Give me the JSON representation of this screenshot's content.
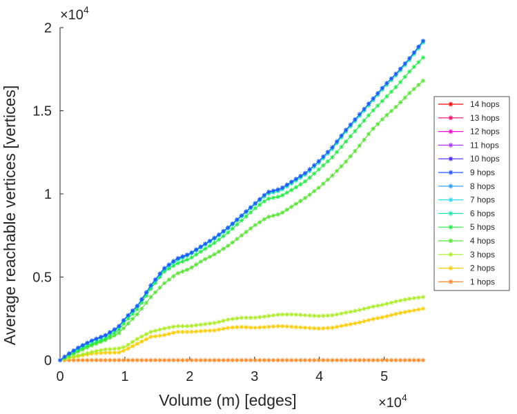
{
  "chart_data": {
    "type": "line",
    "title": "",
    "xlabel": "Volume (m) [edges]",
    "ylabel": "Average reachable vertices [vertices]",
    "x_multiplier_label": "×10",
    "x_multiplier_exp": "4",
    "y_multiplier_label": "×10",
    "y_multiplier_exp": "4",
    "xlim": [
      0,
      5.6
    ],
    "ylim": [
      0,
      2
    ],
    "xticks": [
      0,
      1,
      2,
      3,
      4,
      5
    ],
    "xtick_labels": [
      "0",
      "1",
      "2",
      "3",
      "4",
      "5"
    ],
    "yticks": [
      0,
      0.5,
      1,
      1.5,
      2
    ],
    "ytick_labels": [
      "0",
      "0.5",
      "1",
      "1.5",
      "2"
    ],
    "legend_position": "right",
    "marker": "*",
    "series": [
      {
        "name": "14 hops",
        "color": "#ff0000",
        "x": [
          0,
          5.6
        ],
        "values": [
          0,
          0
        ],
        "hidden": true
      },
      {
        "name": "13 hops",
        "color": "#ff0066",
        "x": [
          0,
          5.6
        ],
        "values": [
          0,
          0
        ],
        "hidden": true
      },
      {
        "name": "12 hops",
        "color": "#ff00d4",
        "x": [
          0,
          5.6
        ],
        "values": [
          0,
          0
        ],
        "hidden": true
      },
      {
        "name": "11 hops",
        "color": "#b233ff",
        "x": [
          0,
          5.6
        ],
        "values": [
          0,
          0
        ],
        "hidden": true
      },
      {
        "name": "10 hops",
        "color": "#4422ff",
        "x": [
          0,
          5.6
        ],
        "values": [
          0,
          0
        ],
        "hidden": true
      },
      {
        "name": "9 hops",
        "color": "#2255ff",
        "x": [
          0,
          0.1,
          0.3,
          0.5,
          0.7,
          0.9,
          1.0,
          1.2,
          1.4,
          1.6,
          1.8,
          2.0,
          2.2,
          2.4,
          2.6,
          2.8,
          3.0,
          3.2,
          3.4,
          3.6,
          3.8,
          4.0,
          4.2,
          4.4,
          4.6,
          4.8,
          5.0,
          5.2,
          5.4,
          5.6
        ],
        "values": [
          0,
          0.03,
          0.08,
          0.12,
          0.15,
          0.2,
          0.25,
          0.33,
          0.45,
          0.55,
          0.61,
          0.64,
          0.69,
          0.74,
          0.8,
          0.87,
          0.94,
          1.01,
          1.03,
          1.08,
          1.13,
          1.2,
          1.28,
          1.38,
          1.47,
          1.56,
          1.65,
          1.73,
          1.82,
          1.92
        ]
      },
      {
        "name": "8 hops",
        "color": "#2299ff",
        "x": [
          0,
          0.1,
          0.3,
          0.5,
          0.7,
          0.9,
          1.0,
          1.2,
          1.4,
          1.6,
          1.8,
          2.0,
          2.2,
          2.4,
          2.6,
          2.8,
          3.0,
          3.2,
          3.4,
          3.6,
          3.8,
          4.0,
          4.2,
          4.4,
          4.6,
          4.8,
          5.0,
          5.2,
          5.4,
          5.6
        ],
        "values": [
          0,
          0.03,
          0.08,
          0.12,
          0.15,
          0.2,
          0.25,
          0.33,
          0.45,
          0.55,
          0.61,
          0.64,
          0.69,
          0.74,
          0.8,
          0.87,
          0.94,
          1.01,
          1.03,
          1.08,
          1.13,
          1.2,
          1.28,
          1.38,
          1.47,
          1.56,
          1.65,
          1.73,
          1.82,
          1.92
        ]
      },
      {
        "name": "7 hops",
        "color": "#22ddff",
        "x": [
          0,
          0.1,
          0.3,
          0.5,
          0.7,
          0.9,
          1.0,
          1.2,
          1.4,
          1.6,
          1.8,
          2.0,
          2.2,
          2.4,
          2.6,
          2.8,
          3.0,
          3.2,
          3.4,
          3.6,
          3.8,
          4.0,
          4.2,
          4.4,
          4.6,
          4.8,
          5.0,
          5.2,
          5.4,
          5.6
        ],
        "values": [
          0,
          0.03,
          0.08,
          0.12,
          0.15,
          0.2,
          0.25,
          0.33,
          0.45,
          0.55,
          0.61,
          0.64,
          0.69,
          0.74,
          0.8,
          0.87,
          0.94,
          1.01,
          1.03,
          1.08,
          1.13,
          1.2,
          1.28,
          1.38,
          1.47,
          1.56,
          1.65,
          1.73,
          1.82,
          1.92
        ]
      },
      {
        "name": "6 hops",
        "color": "#11e8aa",
        "x": [
          0,
          0.1,
          0.3,
          0.5,
          0.7,
          0.9,
          1.0,
          1.2,
          1.4,
          1.6,
          1.8,
          2.0,
          2.2,
          2.4,
          2.6,
          2.8,
          3.0,
          3.2,
          3.4,
          3.6,
          3.8,
          4.0,
          4.2,
          4.4,
          4.6,
          4.8,
          5.0,
          5.2,
          5.4,
          5.6
        ],
        "values": [
          0,
          0.03,
          0.075,
          0.115,
          0.145,
          0.195,
          0.245,
          0.325,
          0.44,
          0.54,
          0.6,
          0.635,
          0.685,
          0.735,
          0.795,
          0.865,
          0.935,
          1.0,
          1.02,
          1.07,
          1.12,
          1.19,
          1.27,
          1.37,
          1.46,
          1.55,
          1.64,
          1.72,
          1.81,
          1.91
        ]
      },
      {
        "name": "5 hops",
        "color": "#22ee44",
        "x": [
          0,
          0.1,
          0.3,
          0.5,
          0.7,
          0.9,
          1.0,
          1.2,
          1.4,
          1.6,
          1.8,
          2.0,
          2.2,
          2.4,
          2.6,
          2.8,
          3.0,
          3.2,
          3.4,
          3.6,
          3.8,
          4.0,
          4.2,
          4.4,
          4.6,
          4.8,
          5.0,
          5.2,
          5.4,
          5.6
        ],
        "values": [
          0,
          0.02,
          0.065,
          0.1,
          0.13,
          0.18,
          0.23,
          0.31,
          0.43,
          0.53,
          0.58,
          0.61,
          0.66,
          0.71,
          0.77,
          0.84,
          0.91,
          0.97,
          0.985,
          1.03,
          1.08,
          1.15,
          1.22,
          1.31,
          1.4,
          1.49,
          1.57,
          1.65,
          1.74,
          1.82
        ]
      },
      {
        "name": "4 hops",
        "color": "#55e633",
        "x": [
          0,
          0.1,
          0.3,
          0.5,
          0.7,
          0.9,
          1.0,
          1.2,
          1.4,
          1.6,
          1.8,
          2.0,
          2.2,
          2.4,
          2.6,
          2.8,
          3.0,
          3.2,
          3.4,
          3.6,
          3.8,
          4.0,
          4.2,
          4.4,
          4.6,
          4.8,
          5.0,
          5.2,
          5.4,
          5.6
        ],
        "values": [
          0,
          0.02,
          0.055,
          0.09,
          0.12,
          0.16,
          0.2,
          0.28,
          0.38,
          0.46,
          0.52,
          0.55,
          0.6,
          0.64,
          0.69,
          0.75,
          0.81,
          0.86,
          0.88,
          0.93,
          0.98,
          1.04,
          1.11,
          1.19,
          1.28,
          1.38,
          1.46,
          1.53,
          1.61,
          1.68
        ]
      },
      {
        "name": "3 hops",
        "color": "#aaee22",
        "x": [
          0,
          0.1,
          0.3,
          0.5,
          0.7,
          0.9,
          1.0,
          1.2,
          1.4,
          1.6,
          1.8,
          2.0,
          2.2,
          2.4,
          2.6,
          2.8,
          3.0,
          3.2,
          3.4,
          3.6,
          3.8,
          4.0,
          4.2,
          4.4,
          4.6,
          4.8,
          5.0,
          5.2,
          5.4,
          5.6
        ],
        "values": [
          0,
          0.01,
          0.03,
          0.05,
          0.065,
          0.07,
          0.08,
          0.13,
          0.17,
          0.19,
          0.205,
          0.205,
          0.215,
          0.225,
          0.245,
          0.255,
          0.255,
          0.265,
          0.275,
          0.275,
          0.27,
          0.265,
          0.27,
          0.285,
          0.3,
          0.32,
          0.335,
          0.355,
          0.37,
          0.38
        ]
      },
      {
        "name": "2 hops",
        "color": "#ffcc00",
        "x": [
          0,
          0.1,
          0.3,
          0.5,
          0.7,
          0.9,
          1.0,
          1.2,
          1.4,
          1.6,
          1.8,
          2.0,
          2.2,
          2.4,
          2.6,
          2.8,
          3.0,
          3.2,
          3.4,
          3.6,
          3.8,
          4.0,
          4.2,
          4.4,
          4.6,
          4.8,
          5.0,
          5.2,
          5.4,
          5.6
        ],
        "values": [
          0,
          0.01,
          0.025,
          0.04,
          0.045,
          0.045,
          0.06,
          0.1,
          0.14,
          0.15,
          0.17,
          0.17,
          0.175,
          0.18,
          0.195,
          0.2,
          0.195,
          0.2,
          0.205,
          0.2,
          0.195,
          0.19,
          0.195,
          0.21,
          0.225,
          0.245,
          0.26,
          0.28,
          0.295,
          0.31
        ]
      },
      {
        "name": "1 hops",
        "color": "#ff8822",
        "x": [
          0,
          5.6
        ],
        "values": [
          0,
          0
        ]
      }
    ]
  }
}
